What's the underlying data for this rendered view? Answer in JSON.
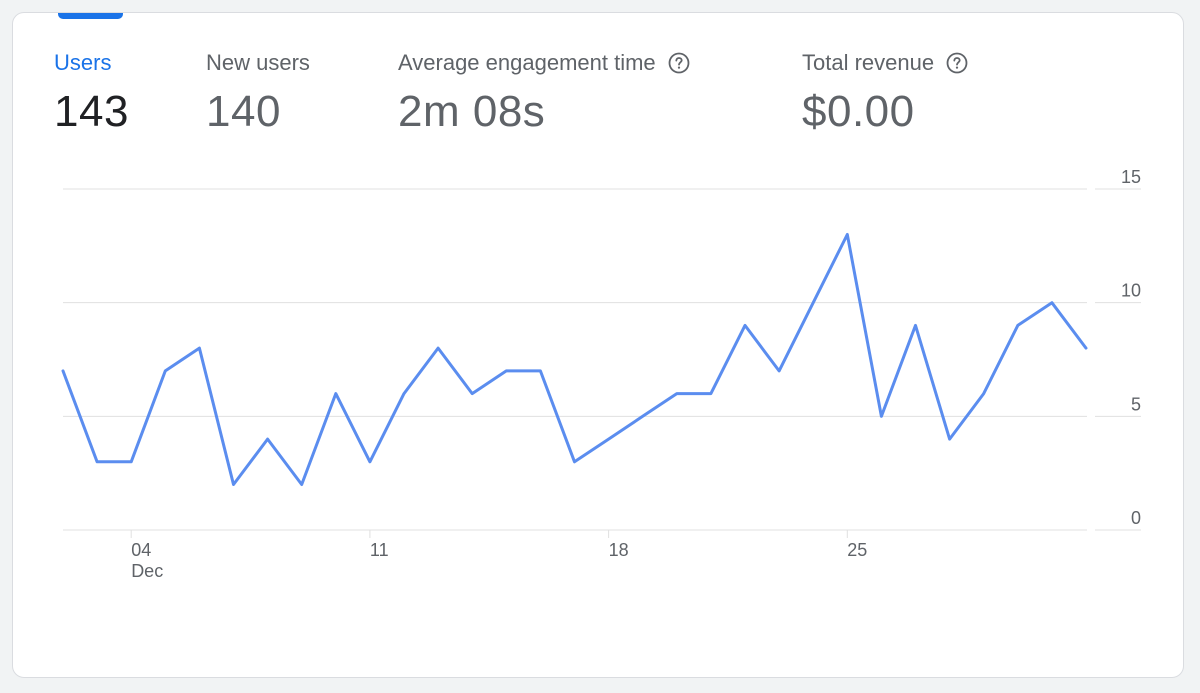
{
  "metrics": [
    {
      "label": "Users",
      "value": "143",
      "active": true,
      "help": false
    },
    {
      "label": "New users",
      "value": "140",
      "active": false,
      "help": false
    },
    {
      "label": "Average engagement time",
      "value": "2m 08s",
      "active": false,
      "help": true
    },
    {
      "label": "Total revenue",
      "value": "$0.00",
      "active": false,
      "help": true
    }
  ],
  "colors": {
    "accent": "#1a73e8",
    "line": "#5b8def",
    "grid": "#e0e0e0",
    "text_muted": "#5f6368",
    "text_strong": "#202124"
  },
  "icons": {
    "help": "help-circle-icon"
  },
  "chart_data": {
    "type": "line",
    "series": [
      {
        "values": [
          7,
          3,
          3,
          7,
          8,
          2,
          4,
          2,
          6,
          3,
          6,
          8,
          6,
          7,
          7,
          3,
          4,
          5,
          6,
          6,
          9,
          7,
          10,
          13,
          5,
          9,
          4,
          6,
          9,
          10,
          8
        ]
      }
    ],
    "x": [
      "Dec 2",
      "Dec 3",
      "Dec 4",
      "Dec 5",
      "Dec 6",
      "Dec 7",
      "Dec 8",
      "Dec 9",
      "Dec 10",
      "Dec 11",
      "Dec 12",
      "Dec 13",
      "Dec 14",
      "Dec 15",
      "Dec 16",
      "Dec 17",
      "Dec 18",
      "Dec 19",
      "Dec 20",
      "Dec 21",
      "Dec 22",
      "Dec 23",
      "Dec 24",
      "Dec 25",
      "Dec 26",
      "Dec 27",
      "Dec 28",
      "Dec 29",
      "Dec 30",
      "Dec 31",
      "Jan 1"
    ],
    "x_ticks": [
      {
        "label": "04",
        "sublabel": "Dec"
      },
      {
        "label": "11",
        "sublabel": ""
      },
      {
        "label": "18",
        "sublabel": ""
      },
      {
        "label": "25",
        "sublabel": ""
      }
    ],
    "y_ticks": [
      0,
      5,
      10,
      15
    ],
    "ylim": [
      0,
      15
    ],
    "y_axis_side": "right",
    "grid": true,
    "legend": "none"
  }
}
